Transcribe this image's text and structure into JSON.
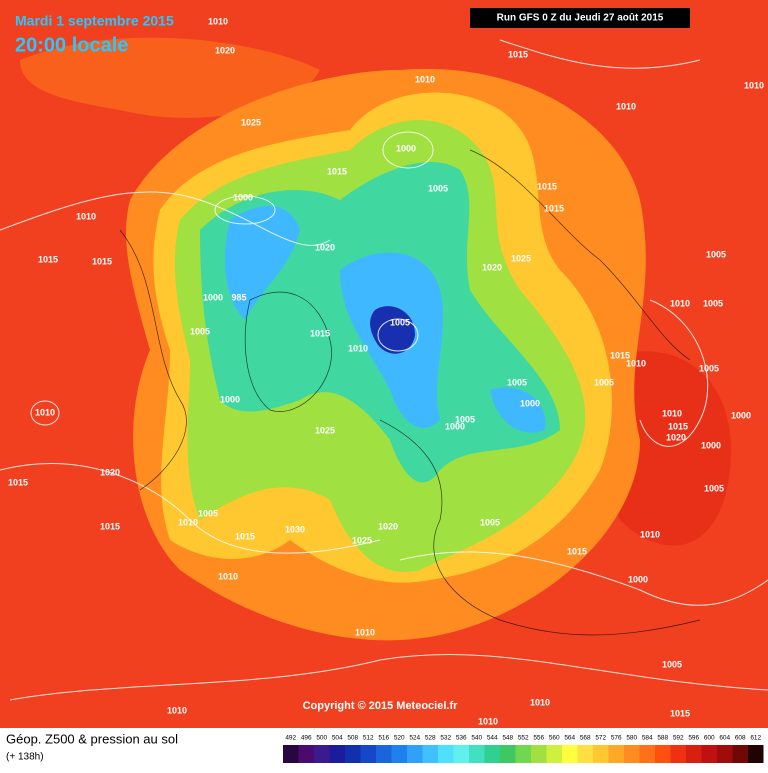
{
  "header": {
    "date": "Mardi 1 septembre 2015",
    "time": "20:00 locale",
    "run": "Run GFS 0 Z du Jeudi 27 août 2015"
  },
  "copyright": "Copyright © 2015 Meteociel.fr",
  "footer": {
    "title": "Géop. Z500 & pression au sol",
    "lead": "(+ 138h)"
  },
  "scale": {
    "levels": [
      492,
      496,
      500,
      504,
      508,
      512,
      516,
      520,
      524,
      528,
      532,
      536,
      540,
      544,
      548,
      552,
      556,
      560,
      564,
      568,
      572,
      576,
      580,
      584,
      588,
      592,
      596,
      600,
      604,
      608,
      612
    ],
    "colors": [
      "#2a0640",
      "#4a0a6e",
      "#3a1a8c",
      "#1c1c9a",
      "#1030b0",
      "#1448c8",
      "#1a64dc",
      "#2080f0",
      "#30a0f8",
      "#40c0ff",
      "#50e0ff",
      "#60f0f0",
      "#40e0c0",
      "#30d090",
      "#40c860",
      "#70d850",
      "#a0e040",
      "#d0f040",
      "#ffff40",
      "#ffe040",
      "#ffc830",
      "#ffa828",
      "#ff8c20",
      "#ff7018",
      "#ff5010",
      "#f03010",
      "#d82010",
      "#c01010",
      "#a00c0c",
      "#700808",
      "#200404"
    ]
  },
  "isobar_labels": [
    "1010",
    "1020",
    "1025",
    "1010",
    "1015",
    "1010",
    "1000",
    "1015",
    "1005",
    "1015",
    "1015",
    "1000",
    "1010",
    "1015",
    "1015",
    "1020",
    "1020",
    "1025",
    "1005",
    "1000",
    "985",
    "1005",
    "1015",
    "1005",
    "1010",
    "1010",
    "1005",
    "1015",
    "1010",
    "1005",
    "1005",
    "1005",
    "1000",
    "1010",
    "1000",
    "1025",
    "1005",
    "1000",
    "1010",
    "1015",
    "1020",
    "1000",
    "1000",
    "1015",
    "1020",
    "1005",
    "1005",
    "1010",
    "1015",
    "1015",
    "1030",
    "1020",
    "1025",
    "1005",
    "1010",
    "1015",
    "1010",
    "1000",
    "1010",
    "1005",
    "1010",
    "1010",
    "1010",
    "1015",
    "1010"
  ]
}
